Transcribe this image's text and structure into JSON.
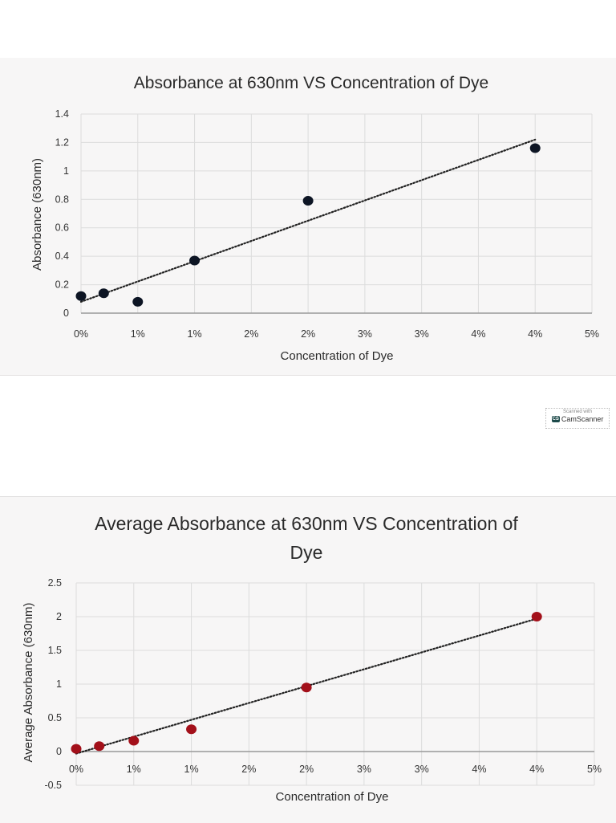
{
  "watermark": {
    "line1": "Scanned with",
    "logo": "CS",
    "brand": "CamScanner"
  },
  "chart_data": [
    {
      "type": "scatter",
      "title": "Absorbance at 630nm VS Concentration of Dye",
      "xlabel": "Concentration of Dye",
      "ylabel": "Absorbance (630nm)",
      "xlim": [
        0,
        4.5
      ],
      "ylim": [
        0,
        1.4
      ],
      "x_tick_labels": [
        "0%",
        "1%",
        "1%",
        "2%",
        "2%",
        "3%",
        "3%",
        "4%",
        "4%",
        "5%"
      ],
      "y_tick_labels": [
        "0",
        "0.2",
        "0.4",
        "0.6",
        "0.8",
        "1",
        "1.2",
        "1.4"
      ],
      "grid": true,
      "marker_color": "#0d1524",
      "points": [
        {
          "x": 0,
          "y": 0.12
        },
        {
          "x": 0.2,
          "y": 0.14
        },
        {
          "x": 0.5,
          "y": 0.08
        },
        {
          "x": 1.0,
          "y": 0.37
        },
        {
          "x": 2.0,
          "y": 0.79
        },
        {
          "x": 4.0,
          "y": 1.16
        }
      ],
      "trendline": {
        "type": "linear",
        "style": "dotted",
        "from": {
          "x": 0,
          "y": 0.08
        },
        "to": {
          "x": 4.0,
          "y": 1.22
        }
      }
    },
    {
      "type": "scatter",
      "title": "Average Absorbance at 630nm VS Concentration of",
      "title_line2": "Dye",
      "xlabel": "Concentration of Dye",
      "ylabel": "Average Absorbance (630nm)",
      "xlim": [
        0,
        4.5
      ],
      "ylim": [
        -0.5,
        2.5
      ],
      "x_tick_labels": [
        "0%",
        "1%",
        "1%",
        "2%",
        "2%",
        "3%",
        "3%",
        "4%",
        "4%",
        "5%"
      ],
      "y_tick_labels": [
        "-0.5",
        "0",
        "0.5",
        "1",
        "1.5",
        "2",
        "2.5"
      ],
      "grid": true,
      "marker_color": "#a3101a",
      "points": [
        {
          "x": 0,
          "y": 0.04
        },
        {
          "x": 0.2,
          "y": 0.08
        },
        {
          "x": 0.5,
          "y": 0.16
        },
        {
          "x": 1.0,
          "y": 0.33
        },
        {
          "x": 2.0,
          "y": 0.95
        },
        {
          "x": 4.0,
          "y": 2.0
        }
      ],
      "trendline": {
        "type": "linear",
        "style": "dotted",
        "from": {
          "x": 0,
          "y": -0.03
        },
        "to": {
          "x": 4.0,
          "y": 1.97
        }
      }
    }
  ]
}
